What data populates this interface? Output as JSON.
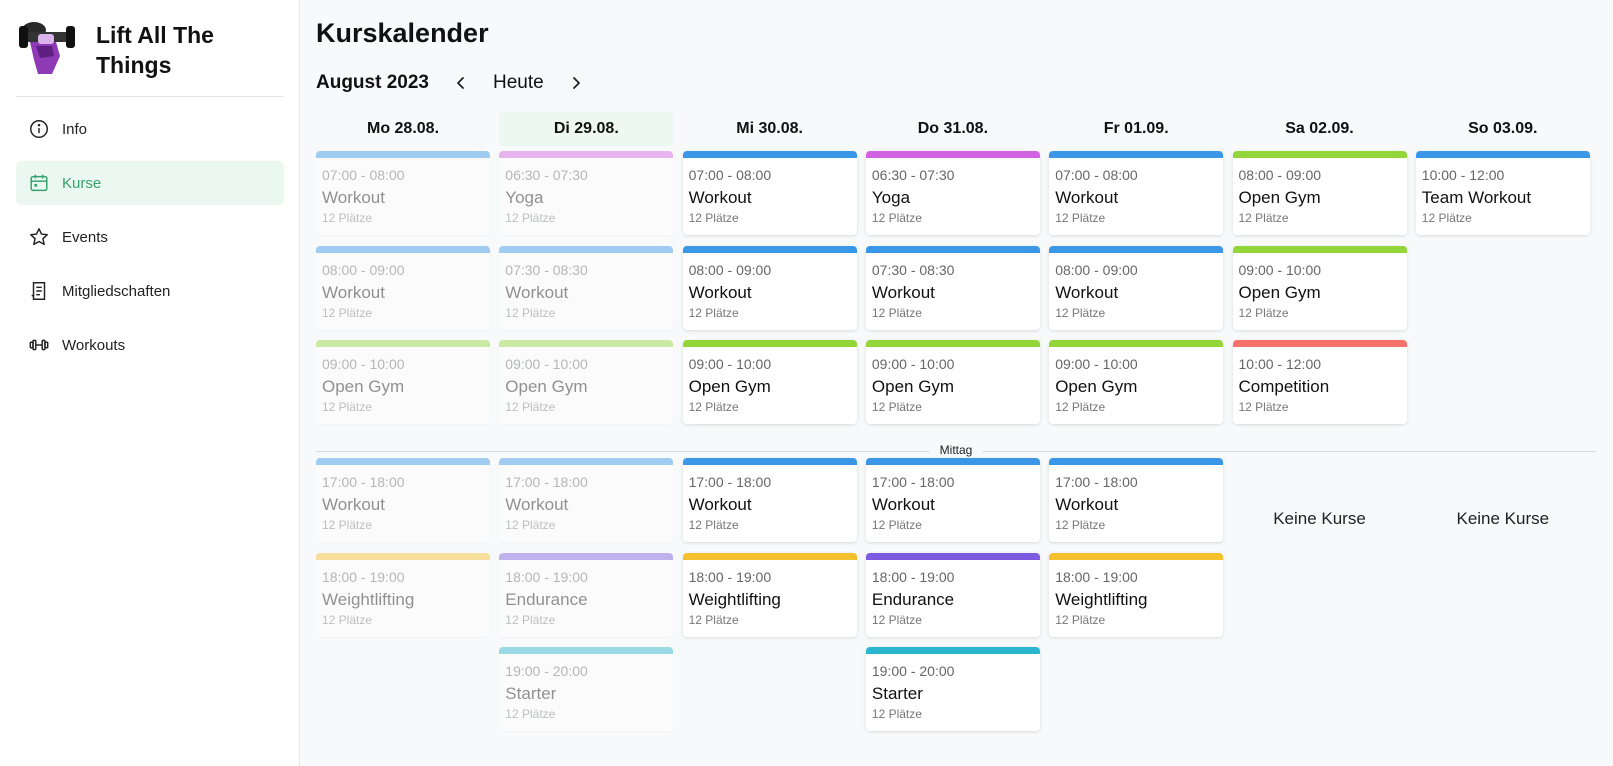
{
  "brand": {
    "name": "Lift All The Things",
    "logo_icon": "dumbbell-fist-logo"
  },
  "nav": [
    {
      "label": "Info",
      "icon": "info-icon",
      "active": false
    },
    {
      "label": "Kurse",
      "icon": "calendar-icon",
      "active": true
    },
    {
      "label": "Events",
      "icon": "star-icon",
      "active": false
    },
    {
      "label": "Mitgliedschaften",
      "icon": "document-icon",
      "active": false
    },
    {
      "label": "Workouts",
      "icon": "dumbbell-icon",
      "active": false
    }
  ],
  "page": {
    "title": "Kurskalender",
    "month": "August 2023",
    "today_label": "Heute",
    "divider_label": "Mittag"
  },
  "colors": {
    "blue": "#3a97e8",
    "pink": "#d163e2",
    "green": "#93d63a",
    "red": "#f6716c",
    "yellow": "#f4c12d",
    "purple": "#7c5be0",
    "teal": "#2ab6cf",
    "accent": "#36a36c"
  },
  "days": [
    {
      "label": "Mo 28.08.",
      "today": false,
      "past": true,
      "morning": [
        {
          "time": "07:00 - 08:00",
          "title": "Workout",
          "spots": "12 Plätze",
          "color": "blue"
        },
        {
          "time": "08:00 - 09:00",
          "title": "Workout",
          "spots": "12 Plätze",
          "color": "blue"
        },
        {
          "time": "09:00 - 10:00",
          "title": "Open Gym",
          "spots": "12 Plätze",
          "color": "green"
        }
      ],
      "afternoon": [
        {
          "time": "17:00 - 18:00",
          "title": "Workout",
          "spots": "12 Plätze",
          "color": "blue"
        },
        {
          "time": "18:00 - 19:00",
          "title": "Weightlifting",
          "spots": "12 Plätze",
          "color": "yellow"
        }
      ]
    },
    {
      "label": "Di 29.08.",
      "today": true,
      "past": true,
      "morning": [
        {
          "time": "06:30 - 07:30",
          "title": "Yoga",
          "spots": "12 Plätze",
          "color": "pink"
        },
        {
          "time": "07:30 - 08:30",
          "title": "Workout",
          "spots": "12 Plätze",
          "color": "blue"
        },
        {
          "time": "09:00 - 10:00",
          "title": "Open Gym",
          "spots": "12 Plätze",
          "color": "green"
        }
      ],
      "afternoon": [
        {
          "time": "17:00 - 18:00",
          "title": "Workout",
          "spots": "12 Plätze",
          "color": "blue"
        },
        {
          "time": "18:00 - 19:00",
          "title": "Endurance",
          "spots": "12 Plätze",
          "color": "purple"
        },
        {
          "time": "19:00 - 20:00",
          "title": "Starter",
          "spots": "12 Plätze",
          "color": "teal"
        }
      ]
    },
    {
      "label": "Mi 30.08.",
      "today": false,
      "past": false,
      "morning": [
        {
          "time": "07:00 - 08:00",
          "title": "Workout",
          "spots": "12 Plätze",
          "color": "blue"
        },
        {
          "time": "08:00 - 09:00",
          "title": "Workout",
          "spots": "12 Plätze",
          "color": "blue"
        },
        {
          "time": "09:00 - 10:00",
          "title": "Open Gym",
          "spots": "12 Plätze",
          "color": "green"
        }
      ],
      "afternoon": [
        {
          "time": "17:00 - 18:00",
          "title": "Workout",
          "spots": "12 Plätze",
          "color": "blue"
        },
        {
          "time": "18:00 - 19:00",
          "title": "Weightlifting",
          "spots": "12 Plätze",
          "color": "yellow"
        }
      ]
    },
    {
      "label": "Do 31.08.",
      "today": false,
      "past": false,
      "morning": [
        {
          "time": "06:30 - 07:30",
          "title": "Yoga",
          "spots": "12 Plätze",
          "color": "pink"
        },
        {
          "time": "07:30 - 08:30",
          "title": "Workout",
          "spots": "12 Plätze",
          "color": "blue"
        },
        {
          "time": "09:00 - 10:00",
          "title": "Open Gym",
          "spots": "12 Plätze",
          "color": "green"
        }
      ],
      "afternoon": [
        {
          "time": "17:00 - 18:00",
          "title": "Workout",
          "spots": "12 Plätze",
          "color": "blue"
        },
        {
          "time": "18:00 - 19:00",
          "title": "Endurance",
          "spots": "12 Plätze",
          "color": "purple"
        },
        {
          "time": "19:00 - 20:00",
          "title": "Starter",
          "spots": "12 Plätze",
          "color": "teal"
        }
      ]
    },
    {
      "label": "Fr 01.09.",
      "today": false,
      "past": false,
      "morning": [
        {
          "time": "07:00 - 08:00",
          "title": "Workout",
          "spots": "12 Plätze",
          "color": "blue"
        },
        {
          "time": "08:00 - 09:00",
          "title": "Workout",
          "spots": "12 Plätze",
          "color": "blue"
        },
        {
          "time": "09:00 - 10:00",
          "title": "Open Gym",
          "spots": "12 Plätze",
          "color": "green"
        }
      ],
      "afternoon": [
        {
          "time": "17:00 - 18:00",
          "title": "Workout",
          "spots": "12 Plätze",
          "color": "blue"
        },
        {
          "time": "18:00 - 19:00",
          "title": "Weightlifting",
          "spots": "12 Plätze",
          "color": "yellow"
        }
      ]
    },
    {
      "label": "Sa 02.09.",
      "today": false,
      "past": false,
      "morning": [
        {
          "time": "08:00 - 09:00",
          "title": "Open Gym",
          "spots": "12 Plätze",
          "color": "green"
        },
        {
          "time": "09:00 - 10:00",
          "title": "Open Gym",
          "spots": "12 Plätze",
          "color": "green"
        },
        {
          "time": "10:00 - 12:00",
          "title": "Competition",
          "spots": "12 Plätze",
          "color": "red"
        }
      ],
      "afternoon": [],
      "empty_label": "Keine Kurse"
    },
    {
      "label": "So 03.09.",
      "today": false,
      "past": false,
      "morning": [
        {
          "time": "10:00 - 12:00",
          "title": "Team Workout",
          "spots": "12 Plätze",
          "color": "blue"
        }
      ],
      "afternoon": [],
      "empty_label": "Keine Kurse"
    }
  ]
}
